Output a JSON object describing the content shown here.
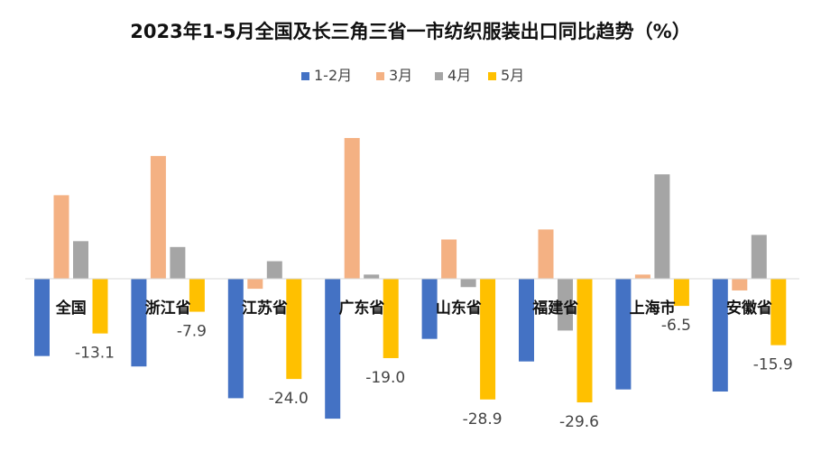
{
  "chart_data": {
    "type": "bar",
    "title": "2023年1-5月全国及长三角三省一市纺织服装出口同比趋势（%）",
    "categories": [
      "全国",
      "浙江省",
      "江苏省",
      "广东省",
      "山东省",
      "福建省",
      "上海市",
      "安徽省"
    ],
    "series": [
      {
        "name": "1-2月",
        "color": "#4472C4",
        "values": [
          -18.5,
          -21.0,
          -28.6,
          -33.5,
          -14.4,
          -19.8,
          -26.5,
          -27.0
        ]
      },
      {
        "name": "3月",
        "color": "#F4B183",
        "values": [
          20.0,
          29.4,
          -2.4,
          33.7,
          9.4,
          11.8,
          1.0,
          -2.8
        ]
      },
      {
        "name": "4月",
        "color": "#A5A5A5",
        "values": [
          9.0,
          7.6,
          4.2,
          1.0,
          -2.0,
          -12.4,
          25.0,
          10.5
        ]
      },
      {
        "name": "5月",
        "color": "#FFC000",
        "values": [
          -13.1,
          -7.9,
          -24.0,
          -19.0,
          -28.9,
          -29.6,
          -6.5,
          -15.9
        ]
      }
    ],
    "data_labels_series": "5月",
    "data_labels": [
      "-13.1",
      "-7.9",
      "-24.0",
      "-19.0",
      "-28.9",
      "-29.6",
      "-6.5",
      "-15.9"
    ],
    "xlabel": "",
    "ylabel": "",
    "ylim": [
      -34,
      34
    ],
    "grid": false,
    "legend_position": "top"
  }
}
